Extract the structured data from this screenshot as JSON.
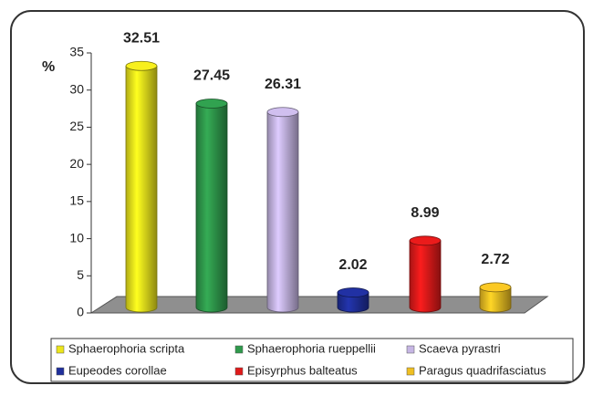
{
  "chart_data": {
    "type": "bar",
    "ylabel": "%",
    "categories": [
      "Sphaerophoria scripta",
      "Sphaerophoria rueppellii",
      "Scaeva pyrastri",
      "Eupeodes corollae",
      "Episyrphus balteatus",
      "Paragus quadrifasciatus"
    ],
    "values": [
      32.51,
      27.45,
      26.31,
      2.02,
      8.99,
      2.72
    ],
    "colors": [
      "#ece51c",
      "#2f9a4c",
      "#c6b6e4",
      "#1f2f9c",
      "#e01a1a",
      "#efbf22"
    ],
    "ylim": [
      0,
      35
    ],
    "yticks": [
      0,
      5,
      10,
      15,
      20,
      25,
      30,
      35
    ]
  }
}
